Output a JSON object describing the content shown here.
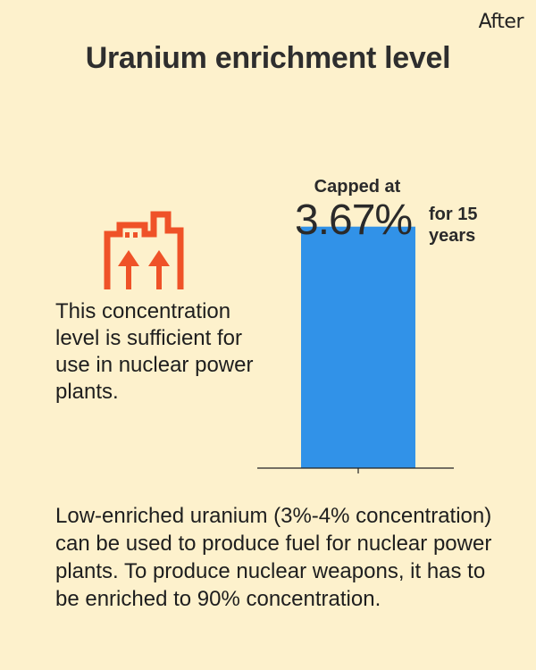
{
  "corner_label": "After",
  "icon_colors": {
    "factory": "#ef5228"
  },
  "factory_icon": "factory-with-up-arrows-icon",
  "note": "This concentration level is sufficient for use in nuclear power plants.",
  "footer": "Low-enriched uranium (3%-4% concentration) can be used to produce fuel for nuclear power plants. To produce nuclear weapons, it has to be enriched to 90% concentration.",
  "chart_data": {
    "type": "bar",
    "title": "Uranium enrichment level",
    "categories": [
      ""
    ],
    "values": [
      3.67
    ],
    "unit": "%",
    "bar_color": "#3192e8",
    "annotation": {
      "prefix": "Capped at",
      "value_text": "3.67%",
      "suffix": "for 15 years"
    },
    "ylim": [
      0,
      4.63
    ],
    "grid": false,
    "legend": "none"
  }
}
